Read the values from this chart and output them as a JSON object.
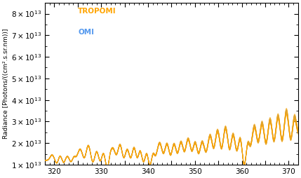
{
  "ylabel": "Radiance [Photons/((cm².s.sr.nm))]",
  "xlim": [
    318,
    372
  ],
  "ylim": [
    10000000000000.0,
    85000000000000.0
  ],
  "yticks": [
    10000000000000.0,
    20000000000000.0,
    30000000000000.0,
    40000000000000.0,
    50000000000000.0,
    60000000000000.0,
    70000000000000.0,
    80000000000000.0
  ],
  "xticks": [
    320,
    325,
    330,
    335,
    340,
    345,
    350,
    355,
    360,
    365,
    370
  ],
  "xticklabels": [
    "320",
    "",
    "330",
    "",
    "340",
    "",
    "350",
    "",
    "360",
    "",
    "370"
  ],
  "legend_tropomi": "TROPOMI",
  "legend_omi": "OMI",
  "tropomi_color": "#FFA500",
  "omi_color": "#5599EE",
  "n_tropomi": 8,
  "n_omi": 10,
  "figsize": [
    4.29,
    2.54
  ],
  "dpi": 100
}
